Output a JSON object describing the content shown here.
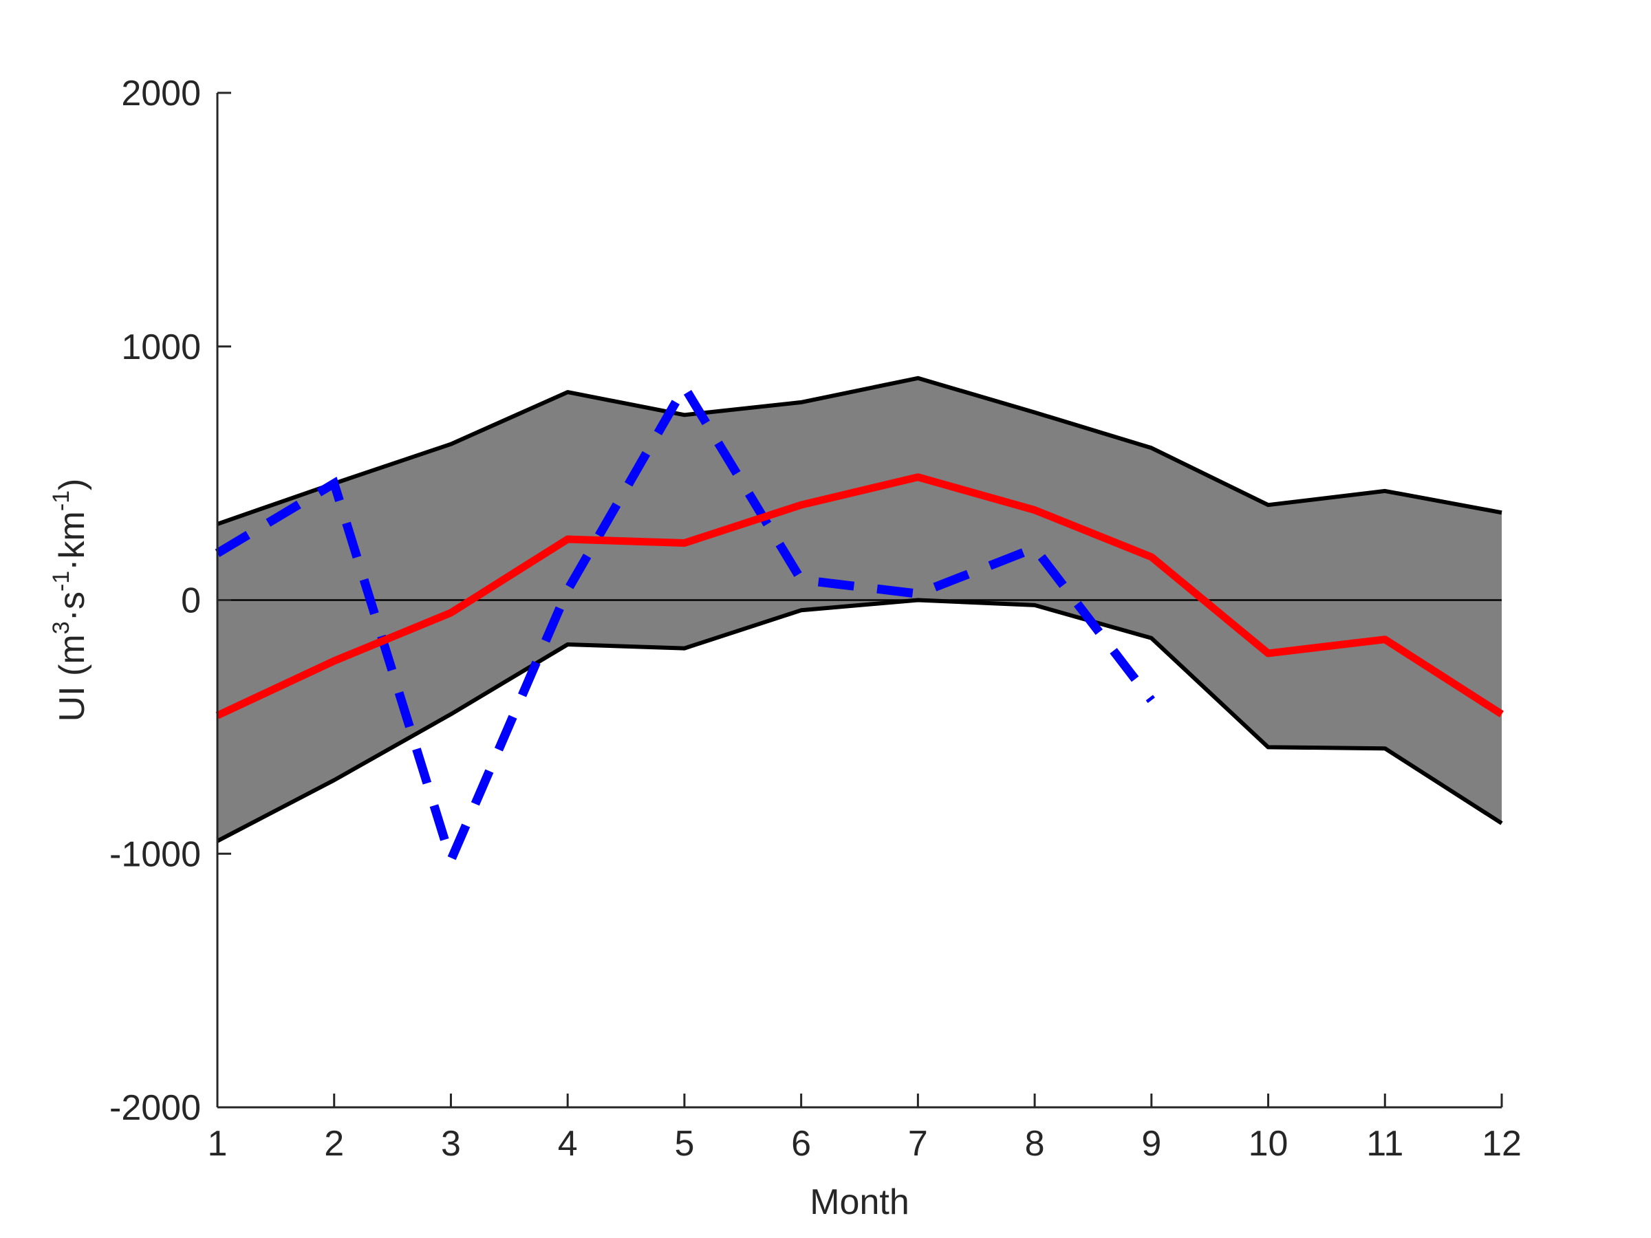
{
  "chart_data": {
    "type": "line",
    "title": "",
    "xlabel": "Month",
    "ylabel": {
      "base": "UI (m",
      "sup1": "3",
      "mid1": "·s",
      "sup2": "-1",
      "mid2": "·km",
      "sup3": "-1",
      "end": ")"
    },
    "xlim": [
      1,
      12
    ],
    "ylim": [
      -2000,
      2000
    ],
    "x_ticks": [
      1,
      2,
      3,
      4,
      5,
      6,
      7,
      8,
      9,
      10,
      11,
      12
    ],
    "x_tick_labels": [
      "1",
      "2",
      "3",
      "4",
      "5",
      "6",
      "7",
      "8",
      "9",
      "10",
      "11",
      "12"
    ],
    "y_ticks": [
      -2000,
      -1000,
      0,
      1000,
      2000
    ],
    "y_tick_labels": [
      "-2000",
      "-1000",
      "0",
      "1000",
      "2000"
    ],
    "grid": false,
    "zero_line": true,
    "x": [
      1,
      2,
      3,
      4,
      5,
      6,
      7,
      8,
      9,
      10,
      11,
      12
    ],
    "series": [
      {
        "role": "band-upper",
        "color": "#000000",
        "values": [
          300,
          460,
          615,
          820,
          730,
          780,
          875,
          740,
          600,
          375,
          430,
          345
        ]
      },
      {
        "role": "band-lower",
        "color": "#000000",
        "values": [
          -950,
          -710,
          -450,
          -175,
          -190,
          -40,
          0,
          -20,
          -150,
          -580,
          -585,
          -880
        ]
      },
      {
        "role": "mean",
        "color": "#ff0000",
        "values": [
          -455,
          -240,
          -50,
          240,
          225,
          375,
          485,
          355,
          170,
          -210,
          -155,
          -450
        ]
      },
      {
        "role": "dashed",
        "color": "#0000ff",
        "x": [
          1,
          2,
          3,
          4,
          5,
          6,
          7,
          8,
          9
        ],
        "values": [
          185,
          460,
          -1025,
          40,
          840,
          80,
          25,
          205,
          -395
        ]
      }
    ],
    "band_fill": "#808080"
  }
}
